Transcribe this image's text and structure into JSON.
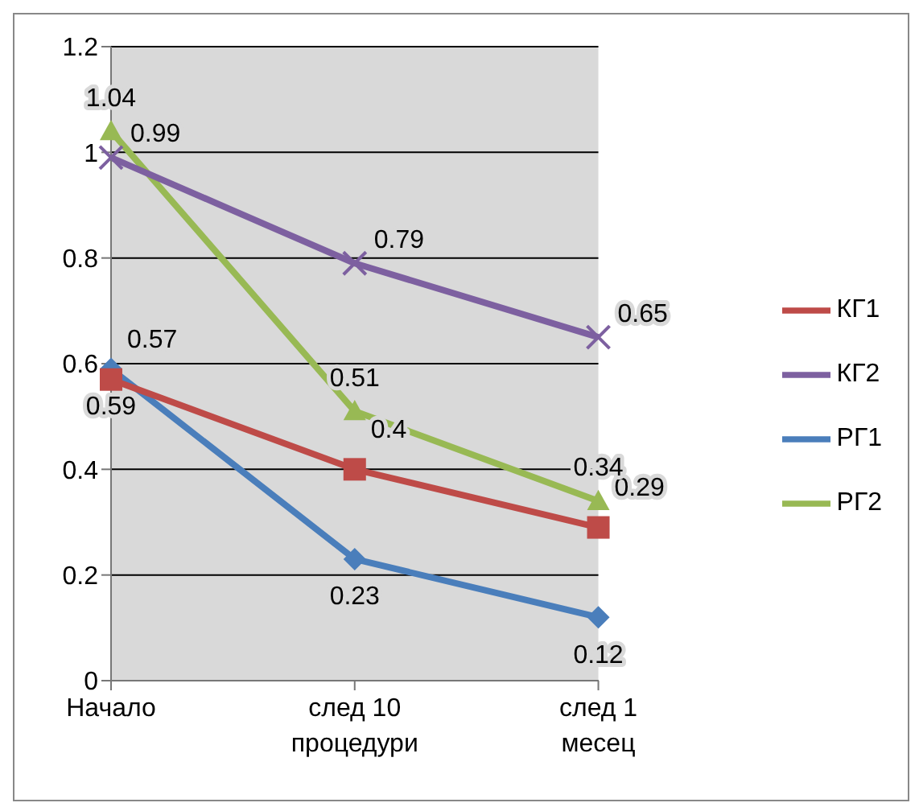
{
  "chart_data": {
    "type": "line",
    "categories": [
      "Начало",
      "след 10 процедури",
      "след 1 месец"
    ],
    "series": [
      {
        "name": "РГ1",
        "color": "#4a7ebb",
        "marker": "diamond",
        "values": [
          0.59,
          0.23,
          0.12
        ]
      },
      {
        "name": "КГ1",
        "color": "#be4b48",
        "marker": "square",
        "values": [
          0.57,
          0.4,
          0.29
        ]
      },
      {
        "name": "РГ2",
        "color": "#98b954",
        "marker": "triangle",
        "values": [
          1.04,
          0.51,
          0.34
        ]
      },
      {
        "name": "КГ2",
        "color": "#7d60a0",
        "marker": "cross",
        "values": [
          0.99,
          0.79,
          0.65
        ]
      }
    ],
    "ylim": [
      0,
      1.2
    ],
    "yticks": [
      0,
      0.2,
      0.4,
      0.6,
      0.8,
      1,
      1.2
    ],
    "grid": "y",
    "legend": "right",
    "data_labels": true
  }
}
